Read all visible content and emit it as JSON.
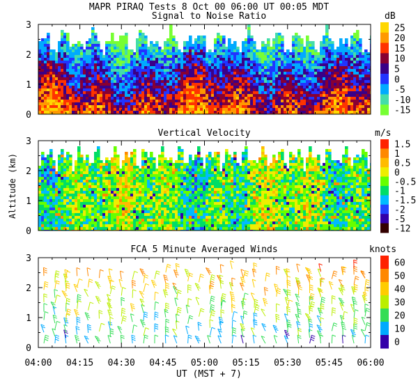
{
  "header": {
    "title": "MAPR PIRAQ Tests  8 Oct 00  06:00 UT  00:05  MDT"
  },
  "shared_axes": {
    "ylabel": "Altitude (km)",
    "xlabel": "UT  (MST + 7)",
    "x_ticks": [
      "04:00",
      "04:15",
      "04:30",
      "04:45",
      "05:00",
      "05:15",
      "05:30",
      "05:45",
      "06:00"
    ],
    "y_ticks": [
      "0",
      "1",
      "2",
      "3"
    ],
    "ylim": [
      0,
      3
    ]
  },
  "chart_data": [
    {
      "type": "heatmap",
      "title": "Signal to Noise Ratio",
      "unit": "dB",
      "xlim": [
        "04:00",
        "06:00"
      ],
      "ylim": [
        0,
        3
      ],
      "colorbar_labels": [
        "25",
        "20",
        "15",
        "10",
        "5",
        "0",
        "-5",
        "-10",
        "-15"
      ],
      "colorbar_colors": [
        "#ffd700",
        "#ff9900",
        "#ff3300",
        "#880033",
        "#3a0088",
        "#2233ff",
        "#00aaff",
        "#44ddaa",
        "#77ff33"
      ]
    },
    {
      "type": "heatmap",
      "title": "Vertical Velocity",
      "unit": "m/s",
      "xlim": [
        "04:00",
        "06:00"
      ],
      "ylim": [
        0,
        3
      ],
      "colorbar_labels": [
        "1.5",
        "1",
        "0.5",
        "0",
        "-0.5",
        "-1",
        "-1.5",
        "-2",
        "-5",
        "-12"
      ],
      "colorbar_colors": [
        "#ff2200",
        "#ff8800",
        "#ffbb00",
        "#eeee00",
        "#66ff00",
        "#00dd66",
        "#00bbff",
        "#2244ff",
        "#3300aa",
        "#330000"
      ]
    },
    {
      "type": "scatter",
      "title": "FCA 5 Minute Averaged Winds",
      "unit": "knots",
      "xlim": [
        "04:00",
        "06:00"
      ],
      "ylim": [
        0,
        3
      ],
      "colorbar_labels": [
        "60",
        "50",
        "40",
        "30",
        "20",
        "10",
        "0"
      ],
      "colorbar_colors": [
        "#ff2200",
        "#ff8800",
        "#ffcc00",
        "#bbee00",
        "#33dd55",
        "#00aaff",
        "#3300aa"
      ]
    }
  ]
}
